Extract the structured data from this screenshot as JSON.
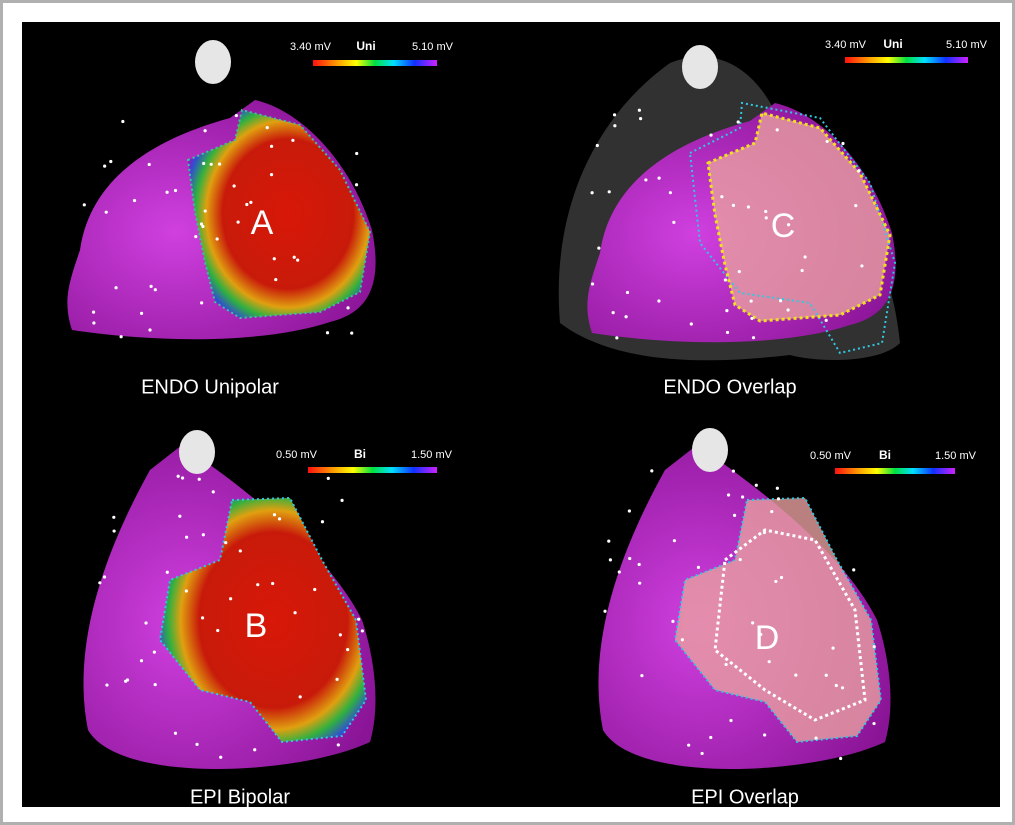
{
  "panels": [
    {
      "letter": "A",
      "caption": "ENDO Unipolar",
      "scale": {
        "min": "3.40 mV",
        "label": "Uni",
        "max": "5.10 mV"
      }
    },
    {
      "letter": "C",
      "caption": "ENDO Overlap",
      "scale": {
        "min": "3.40 mV",
        "label": "Uni",
        "max": "5.10 mV"
      }
    },
    {
      "letter": "B",
      "caption": "EPI Bipolar",
      "scale": {
        "min": "0.50 mV",
        "label": "Bi",
        "max": "1.50 mV"
      }
    },
    {
      "letter": "D",
      "caption": "EPI Overlap",
      "scale": {
        "min": "0.50 mV",
        "label": "Bi",
        "max": "1.50 mV"
      }
    }
  ]
}
